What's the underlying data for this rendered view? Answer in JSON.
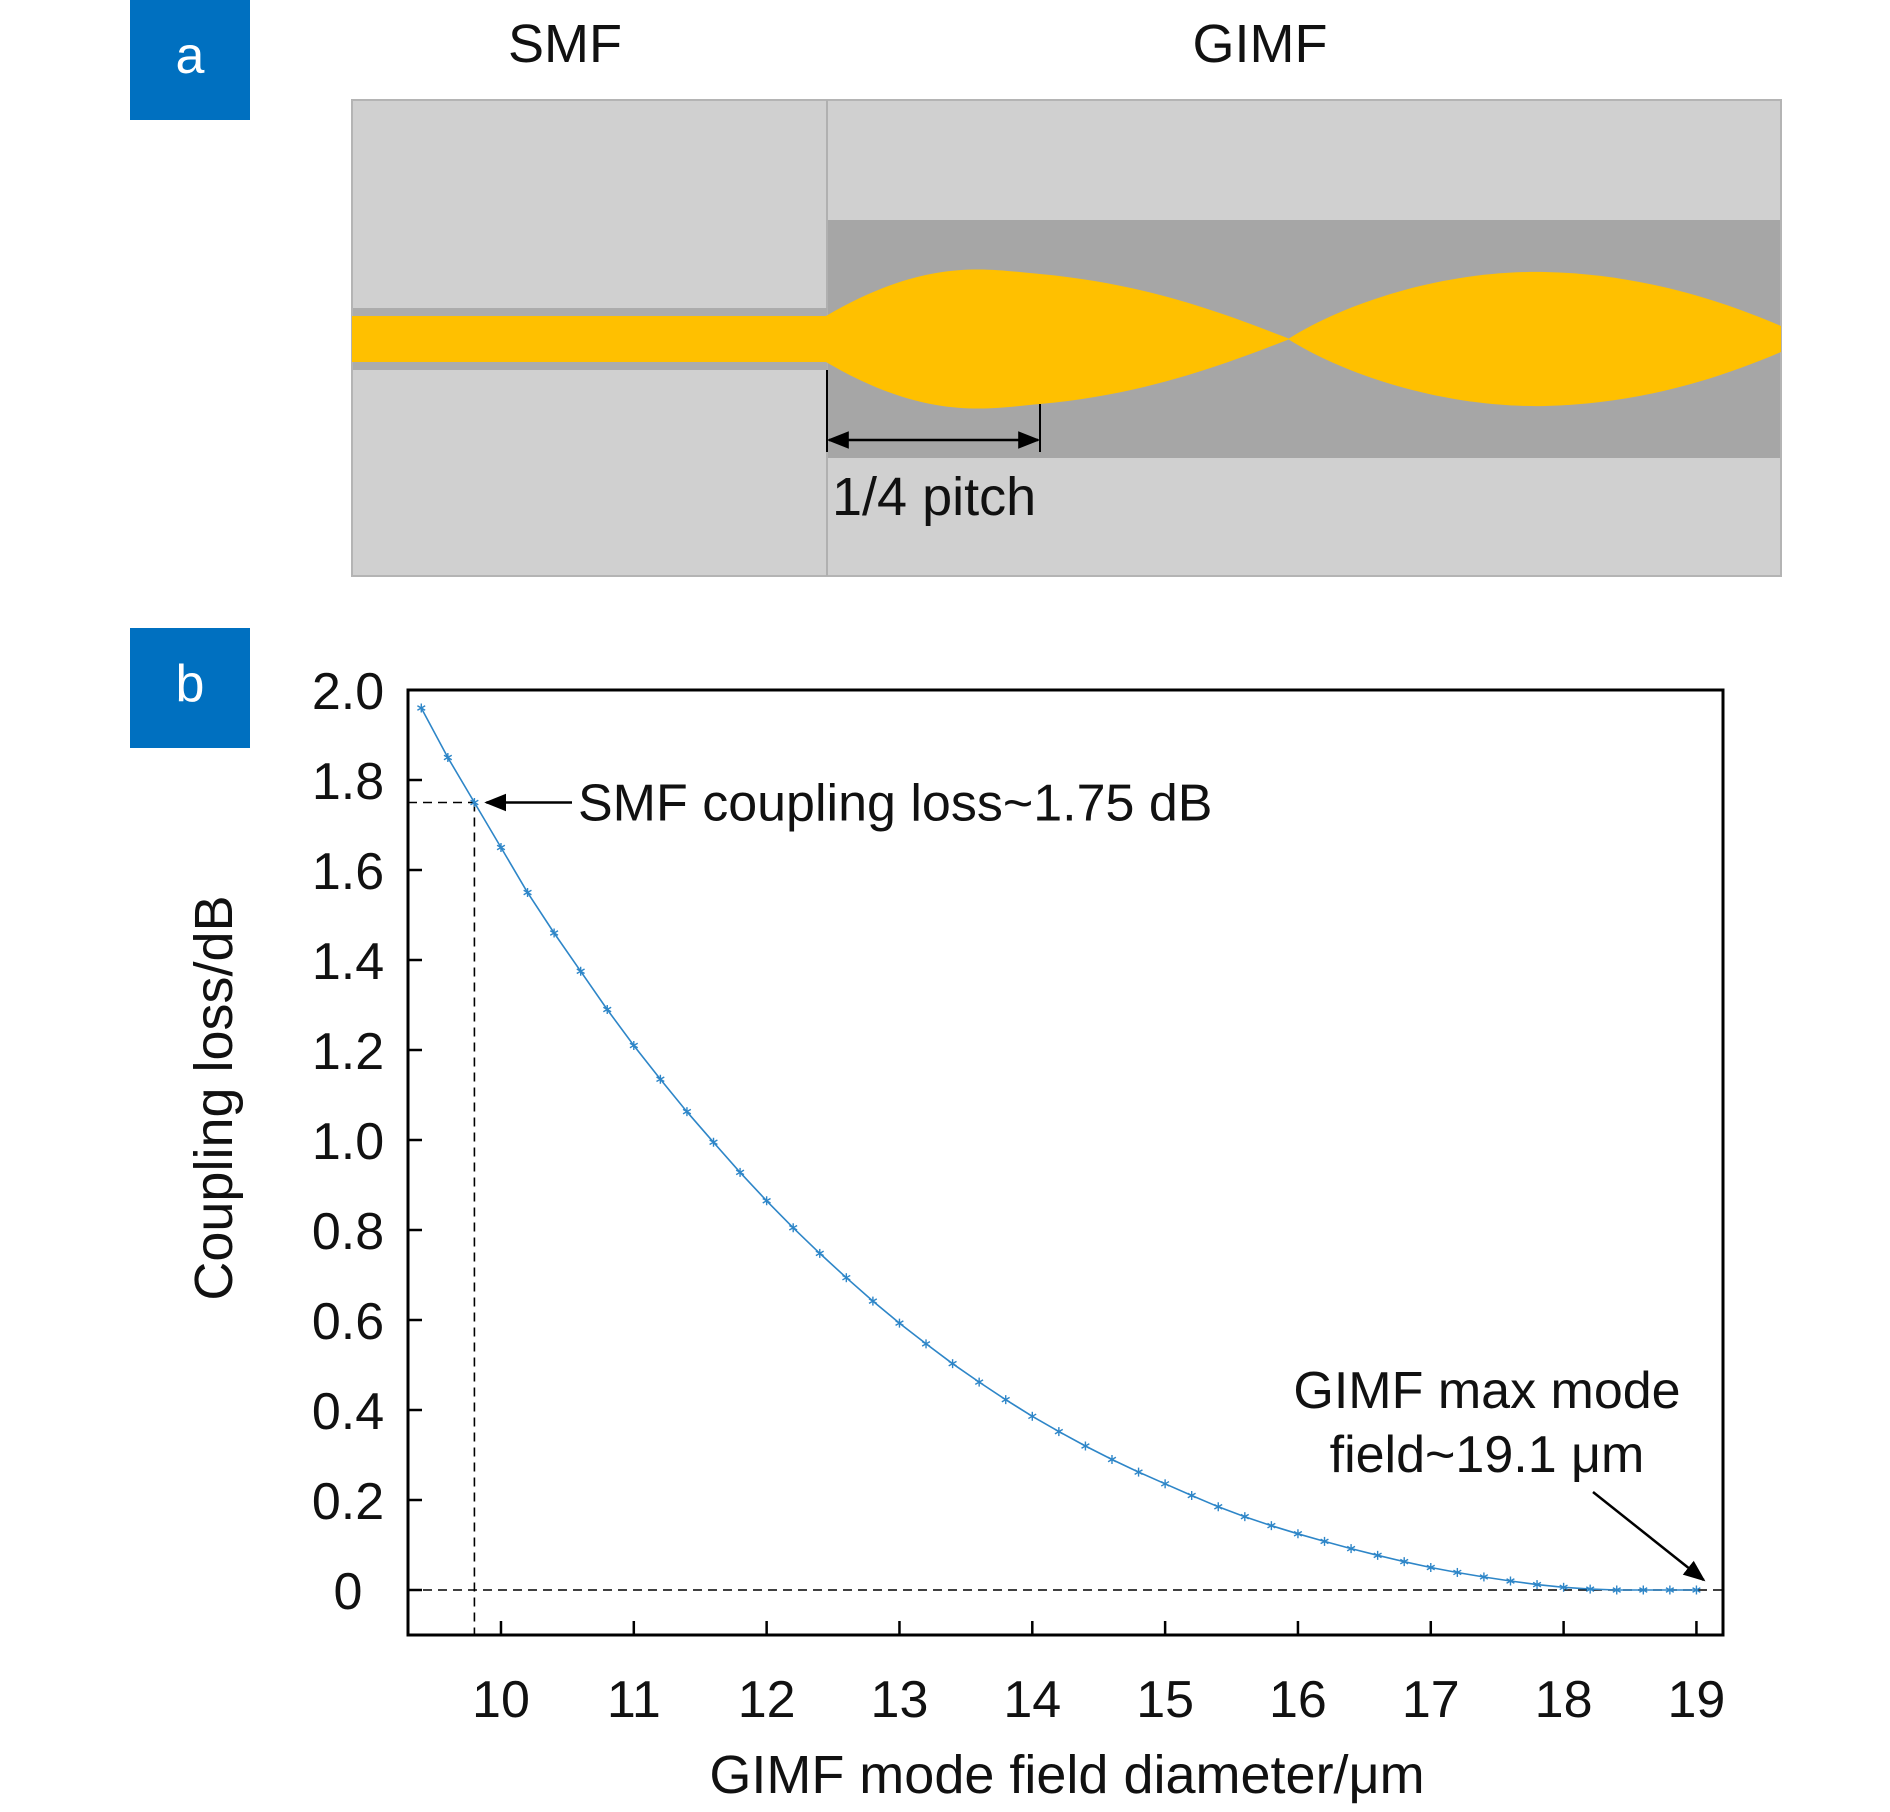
{
  "colors": {
    "badge": "#0070C0",
    "cladding": "#D0D0D0",
    "gimf_core": "#A6A6A6",
    "beam": "#FFC000",
    "curve": "#2E86C8",
    "axis": "#000000"
  },
  "panel_a": {
    "badge": "a",
    "smf_label": "SMF",
    "gimf_label": "GIMF",
    "pitch_label": "1/4 pitch"
  },
  "panel_b": {
    "badge": "b",
    "annotation_smf": "SMF coupling loss~1.75 dB",
    "annotation_gimf_line1": "GIMF max mode",
    "annotation_gimf_line2": "field~19.1 μm"
  },
  "chart_data": {
    "type": "line",
    "xlabel": "GIMF mode field diameter/μm",
    "ylabel": "Coupling loss/dB",
    "xlim": [
      9.3,
      19.2
    ],
    "ylim": [
      -0.1,
      2.0
    ],
    "xticks": [
      10,
      11,
      12,
      13,
      14,
      15,
      16,
      17,
      18,
      19
    ],
    "xtick_labels": [
      "10",
      "11",
      "12",
      "13",
      "14",
      "15",
      "16",
      "17",
      "18",
      "19"
    ],
    "yticks": [
      0,
      0.2,
      0.4,
      0.6,
      0.8,
      1.0,
      1.2,
      1.4,
      1.6,
      1.8,
      2.0
    ],
    "ytick_labels": [
      "0",
      "0.2",
      "0.4",
      "0.6",
      "0.8",
      "1.0",
      "1.2",
      "1.4",
      "1.6",
      "1.8",
      "2.0"
    ],
    "grid": false,
    "marker": "asterisk",
    "reference_lines": {
      "smf_loss_db": 1.75,
      "smf_mfd_um": 9.8,
      "zero_loss_db": 0
    },
    "series": [
      {
        "x": [
          9.4,
          9.6,
          9.8,
          10.0,
          10.2,
          10.4,
          10.6,
          10.8,
          11.0,
          11.2,
          11.4,
          11.6,
          11.8,
          12.0,
          12.2,
          12.4,
          12.6,
          12.8,
          13.0,
          13.2,
          13.4,
          13.6,
          13.8,
          14.0,
          14.2,
          14.4,
          14.6,
          14.8,
          15.0,
          15.2,
          15.4,
          15.6,
          15.8,
          16.0,
          16.2,
          16.4,
          16.6,
          16.8,
          17.0,
          17.2,
          17.4,
          17.6,
          17.8,
          18.0,
          18.2,
          18.4,
          18.6,
          18.8,
          19.0
        ],
        "y": [
          1.96,
          1.85,
          1.75,
          1.65,
          1.55,
          1.46,
          1.375,
          1.29,
          1.21,
          1.135,
          1.063,
          0.995,
          0.928,
          0.865,
          0.805,
          0.748,
          0.694,
          0.642,
          0.593,
          0.547,
          0.503,
          0.462,
          0.423,
          0.386,
          0.352,
          0.32,
          0.29,
          0.262,
          0.236,
          0.21,
          0.185,
          0.163,
          0.143,
          0.125,
          0.108,
          0.092,
          0.077,
          0.063,
          0.05,
          0.039,
          0.029,
          0.02,
          0.012,
          0.006,
          0.002,
          0.0,
          0.0,
          0.0,
          0.0
        ]
      }
    ]
  }
}
